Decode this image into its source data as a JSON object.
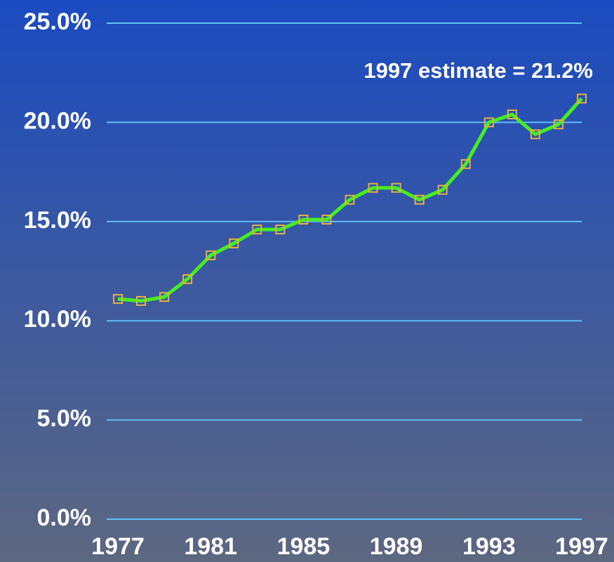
{
  "chart_data": {
    "type": "line",
    "annotation": "1997 estimate = 21.2%",
    "x": [
      1977,
      1978,
      1979,
      1980,
      1981,
      1982,
      1983,
      1984,
      1985,
      1986,
      1987,
      1988,
      1989,
      1990,
      1991,
      1992,
      1993,
      1994,
      1995,
      1996,
      1997
    ],
    "series": [
      {
        "color": "#44ee22",
        "marker_color": "#e8b040",
        "values": [
          11.1,
          11.0,
          11.2,
          12.1,
          13.3,
          13.9,
          14.6,
          14.6,
          15.1,
          15.1,
          16.1,
          16.7,
          16.7,
          16.1,
          16.6,
          17.9,
          20.0,
          20.4,
          19.4,
          19.9,
          21.2
        ]
      }
    ],
    "xlim": [
      1977,
      1997
    ],
    "xticks": [
      1977,
      1981,
      1985,
      1989,
      1993,
      1997
    ],
    "ylim": [
      0,
      25
    ],
    "yticks": [
      {
        "value": 0,
        "label": "0.0%"
      },
      {
        "value": 5,
        "label": "5.0%"
      },
      {
        "value": 10,
        "label": "10.0%"
      },
      {
        "value": 15,
        "label": "15.0%"
      },
      {
        "value": 20,
        "label": "20.0%"
      },
      {
        "value": 25,
        "label": "25.0%"
      }
    ],
    "grid": true
  }
}
